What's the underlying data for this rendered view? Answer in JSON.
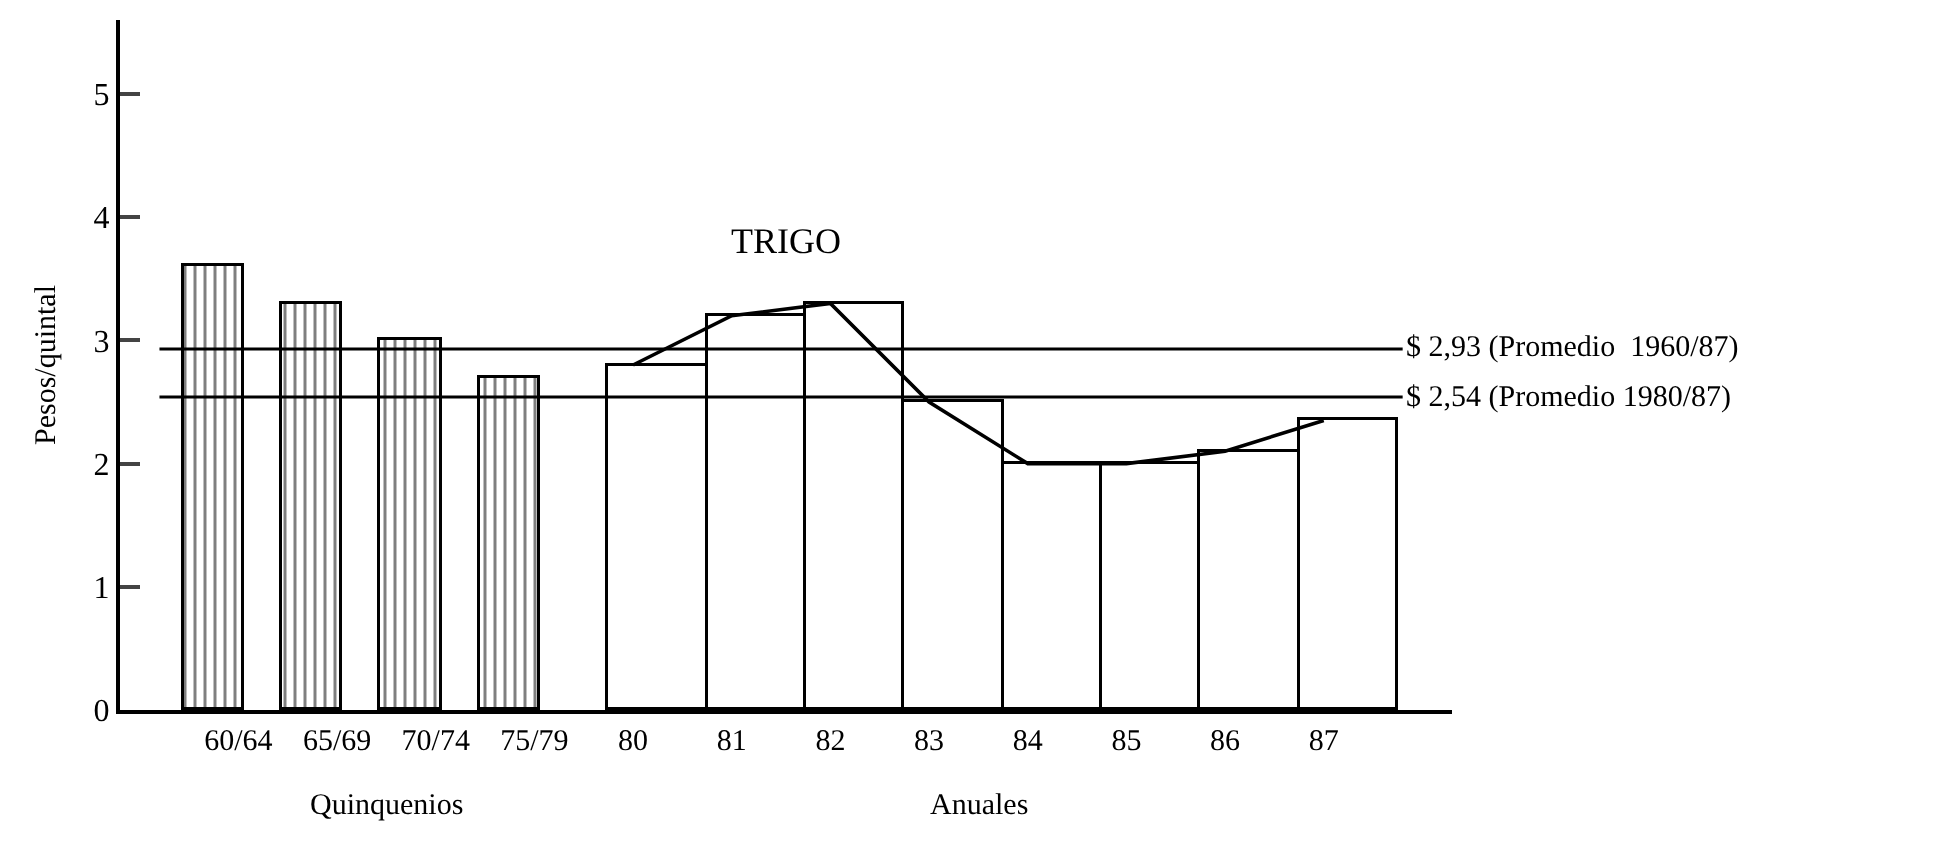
{
  "chart_data": {
    "type": "bar",
    "title": "TRIGO",
    "ylabel": "Pesos/quintal",
    "categories": [
      "60/64",
      "65/69",
      "70/74",
      "75/79",
      "80",
      "81",
      "82",
      "83",
      "84",
      "85",
      "86",
      "87"
    ],
    "series": [
      {
        "color": "#000000",
        "values": [
          3.6,
          3.3,
          3.0,
          2.7,
          null,
          null,
          null,
          null,
          null,
          null,
          null,
          null
        ]
      },
      {
        "color": "#000000",
        "values": [
          null,
          null,
          null,
          null,
          2.8,
          3.2,
          3.3,
          2.5,
          2.0,
          2.0,
          2.1,
          2.35
        ]
      },
      {
        "type": "line",
        "color": "#000000",
        "values": [
          null,
          null,
          null,
          null,
          2.8,
          3.2,
          3.3,
          2.5,
          2.0,
          2.0,
          2.1,
          2.35
        ]
      }
    ],
    "ylim": [
      0,
      5.6
    ],
    "yticks": [
      0,
      1,
      2,
      3,
      4,
      5
    ],
    "ref_lines": [
      {
        "axis": "y",
        "value": 2.93,
        "label": "$ 2,93 (Promedio  1960/87)"
      },
      {
        "axis": "y",
        "value": 2.54,
        "label": "$ 2,54 (Promedio 1980/87)"
      }
    ],
    "annotations": [
      "Quinquenios",
      "Anuales"
    ]
  }
}
